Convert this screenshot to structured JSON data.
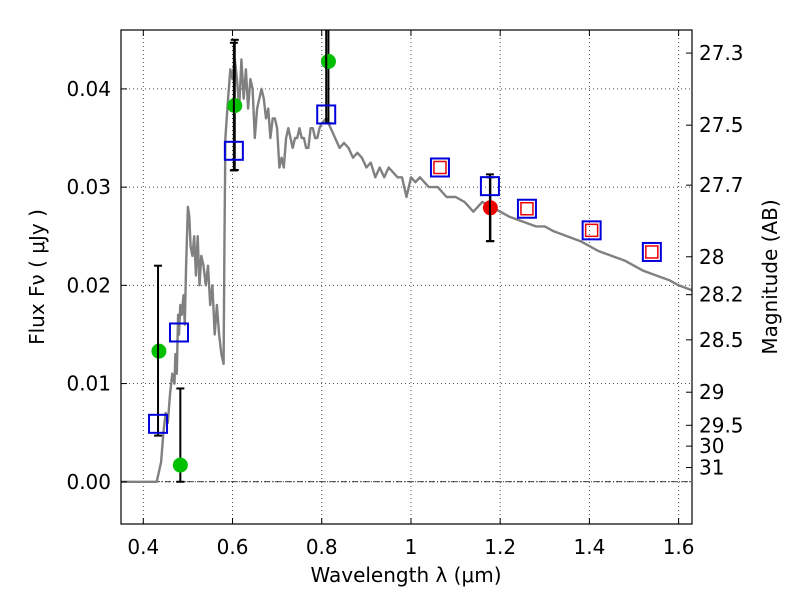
{
  "chart_data": {
    "type": "scatter",
    "xlabel": "Wavelength  λ (μm)",
    "ylabel": "Flux  Fν  ( μJy )",
    "ylabel_right": "Magnitude (AB)",
    "xlim": [
      0.35,
      1.63
    ],
    "ylim": [
      -0.0043,
      0.046
    ],
    "grid": true,
    "x_ticks": [
      0.4,
      0.6,
      0.8,
      1.0,
      1.2,
      1.4,
      1.6
    ],
    "x_tick_labels": [
      "0.4",
      "0.6",
      "0.8",
      "1",
      "1.2",
      "1.4",
      "1.6"
    ],
    "y_ticks": [
      0.0,
      0.01,
      0.02,
      0.03,
      0.04
    ],
    "y_tick_labels": [
      "0.00",
      "0.01",
      "0.02",
      "0.03",
      "0.04"
    ],
    "right_ticks": [
      {
        "flux": 0.04365,
        "label": "27.3"
      },
      {
        "flux": 0.03631,
        "label": "27.5"
      },
      {
        "flux": 0.0302,
        "label": "27.7"
      },
      {
        "flux": 0.02291,
        "label": "28"
      },
      {
        "flux": 0.01905,
        "label": "28.2"
      },
      {
        "flux": 0.01445,
        "label": "28.5"
      },
      {
        "flux": 0.00912,
        "label": "29"
      },
      {
        "flux": 0.00575,
        "label": "29.5"
      },
      {
        "flux": 0.00363,
        "label": "30"
      },
      {
        "flux": 0.00145,
        "label": "31"
      }
    ],
    "series": [
      {
        "name": "template spectrum",
        "style": "line",
        "color": "#808080",
        "x": [
          0.35,
          0.43,
          0.435,
          0.44,
          0.445,
          0.45,
          0.455,
          0.46,
          0.465,
          0.47,
          0.472,
          0.475,
          0.478,
          0.48,
          0.483,
          0.486,
          0.49,
          0.493,
          0.496,
          0.5,
          0.503,
          0.506,
          0.51,
          0.514,
          0.518,
          0.522,
          0.526,
          0.53,
          0.535,
          0.54,
          0.545,
          0.55,
          0.555,
          0.56,
          0.565,
          0.57,
          0.575,
          0.58,
          0.582,
          0.584,
          0.587,
          0.59,
          0.595,
          0.6,
          0.605,
          0.61,
          0.615,
          0.62,
          0.625,
          0.63,
          0.635,
          0.64,
          0.645,
          0.65,
          0.655,
          0.66,
          0.665,
          0.67,
          0.675,
          0.68,
          0.685,
          0.69,
          0.695,
          0.7,
          0.705,
          0.71,
          0.715,
          0.72,
          0.725,
          0.73,
          0.735,
          0.74,
          0.745,
          0.75,
          0.755,
          0.76,
          0.765,
          0.77,
          0.775,
          0.78,
          0.785,
          0.79,
          0.795,
          0.8,
          0.81,
          0.82,
          0.83,
          0.84,
          0.85,
          0.86,
          0.87,
          0.88,
          0.89,
          0.9,
          0.91,
          0.92,
          0.93,
          0.94,
          0.95,
          0.96,
          0.97,
          0.98,
          0.99,
          1.0,
          1.01,
          1.02,
          1.04,
          1.06,
          1.08,
          1.1,
          1.12,
          1.14,
          1.16,
          1.18,
          1.2,
          1.22,
          1.25,
          1.28,
          1.3,
          1.32,
          1.35,
          1.38,
          1.4,
          1.42,
          1.45,
          1.48,
          1.5,
          1.52,
          1.55,
          1.58,
          1.6,
          1.63
        ],
        "y": [
          0.0,
          0.0,
          0.001,
          0.002,
          0.005,
          0.007,
          0.006,
          0.009,
          0.011,
          0.01,
          0.013,
          0.011,
          0.017,
          0.015,
          0.018,
          0.017,
          0.019,
          0.016,
          0.022,
          0.028,
          0.027,
          0.024,
          0.023,
          0.025,
          0.021,
          0.025,
          0.02,
          0.023,
          0.022,
          0.02,
          0.022,
          0.018,
          0.02,
          0.015,
          0.018,
          0.015,
          0.013,
          0.012,
          0.025,
          0.035,
          0.037,
          0.039,
          0.042,
          0.041,
          0.043,
          0.041,
          0.038,
          0.043,
          0.039,
          0.042,
          0.038,
          0.041,
          0.04,
          0.035,
          0.038,
          0.039,
          0.04,
          0.039,
          0.037,
          0.038,
          0.035,
          0.037,
          0.037,
          0.036,
          0.032,
          0.033,
          0.032,
          0.035,
          0.036,
          0.035,
          0.034,
          0.035,
          0.035,
          0.036,
          0.035,
          0.035,
          0.034,
          0.034,
          0.036,
          0.036,
          0.035,
          0.035,
          0.036,
          0.0365,
          0.037,
          0.036,
          0.035,
          0.034,
          0.0345,
          0.034,
          0.033,
          0.0335,
          0.033,
          0.032,
          0.0325,
          0.031,
          0.032,
          0.031,
          0.032,
          0.0315,
          0.031,
          0.031,
          0.029,
          0.031,
          0.0305,
          0.031,
          0.03,
          0.03,
          0.029,
          0.029,
          0.0285,
          0.0275,
          0.0285,
          0.028,
          0.0275,
          0.027,
          0.0265,
          0.026,
          0.026,
          0.0255,
          0.025,
          0.0245,
          0.024,
          0.0235,
          0.023,
          0.0225,
          0.022,
          0.0215,
          0.021,
          0.0205,
          0.02,
          0.0195
        ]
      },
      {
        "name": "green points",
        "style": "circle",
        "color": "#00c000",
        "x": [
          0.435,
          0.483,
          0.605,
          0.815
        ],
        "y": [
          0.0133,
          0.0017,
          0.0383,
          0.0428
        ],
        "yerr_low": [
          null,
          0.0,
          0.03175,
          0.0365
        ],
        "yerr_high": [
          null,
          0.0095,
          0.045,
          0.046
        ]
      },
      {
        "name": "red point",
        "style": "circle",
        "color": "#ee0000",
        "x": [
          1.178
        ],
        "y": [
          0.0279
        ],
        "yerr_low": [
          0.0245
        ],
        "yerr_high": [
          0.031
        ]
      },
      {
        "name": "blue squares",
        "style": "square-open",
        "color": "#0000dd",
        "x": [
          0.433,
          0.48,
          0.603,
          0.81,
          1.065,
          1.177,
          1.26,
          1.405,
          1.54
        ],
        "y": [
          0.0059,
          0.0152,
          0.0337,
          0.0374,
          0.032,
          0.0301,
          0.0278,
          0.0256,
          0.0234
        ],
        "yerr_low": [
          0.0047,
          null,
          0.0317,
          0.0365,
          null,
          0.0245,
          null,
          null,
          null
        ],
        "yerr_high": [
          0.022,
          null,
          0.0447,
          0.046,
          null,
          0.0313,
          null,
          null,
          null
        ]
      },
      {
        "name": "red squares",
        "style": "square-open-small",
        "color": "#ee0000",
        "x": [
          1.065,
          1.26,
          1.405,
          1.54
        ],
        "y": [
          0.032,
          0.0278,
          0.0256,
          0.0234
        ]
      }
    ]
  }
}
